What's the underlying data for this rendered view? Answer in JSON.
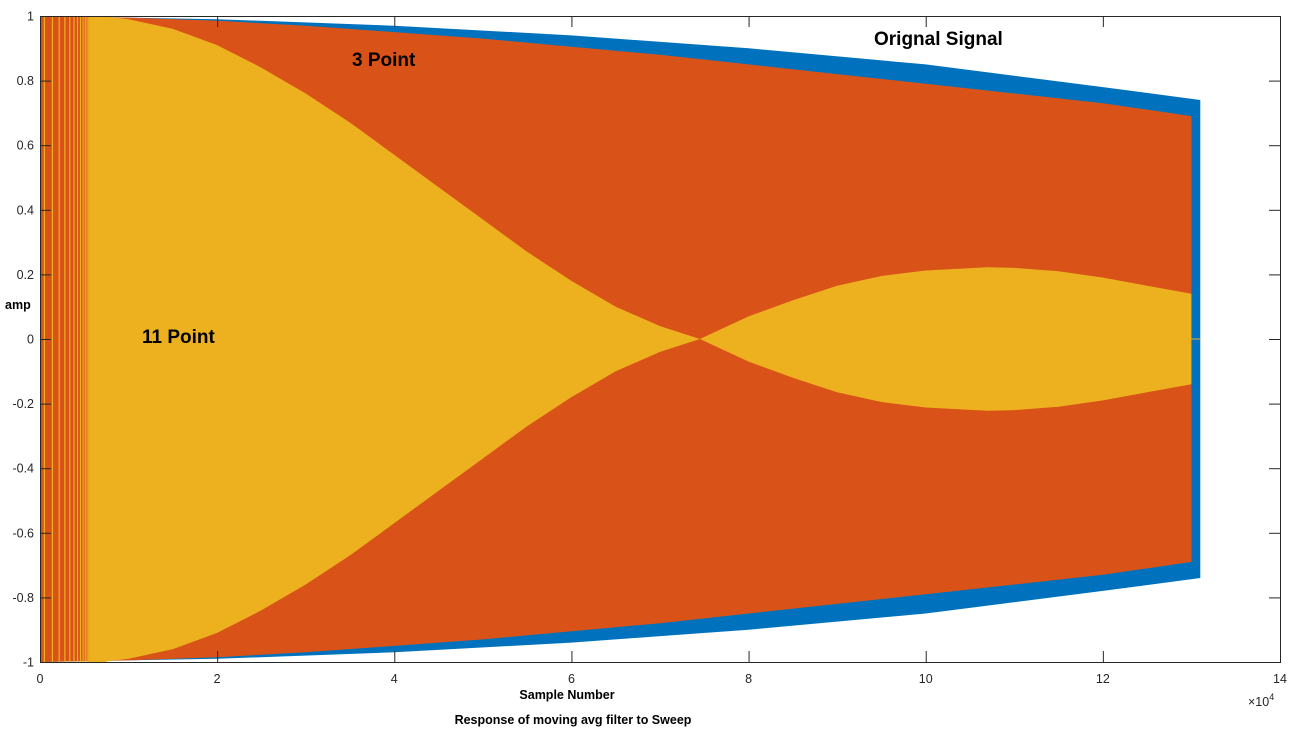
{
  "chart_data": {
    "type": "area",
    "title": "Response of moving avg filter to Sweep",
    "xlabel": "Sample Number",
    "ylabel": "amp",
    "x_exponent_label": "×10^4",
    "xlim": [
      0,
      14
    ],
    "ylim": [
      -1,
      1
    ],
    "x_ticks": [
      0,
      2,
      4,
      6,
      8,
      10,
      12,
      14
    ],
    "y_ticks": [
      -1,
      -0.8,
      -0.6,
      -0.4,
      -0.2,
      0,
      0.2,
      0.4,
      0.6,
      0.8,
      1
    ],
    "x_tick_labels": [
      "0",
      "2",
      "4",
      "6",
      "8",
      "10",
      "12",
      "14"
    ],
    "y_tick_labels": [
      "-1",
      "-0.8",
      "-0.6",
      "-0.4",
      "-0.2",
      "0",
      "0.2",
      "0.4",
      "0.6",
      "0.8",
      "1"
    ],
    "grid": false,
    "legend": "none (inline annotations)",
    "note": "Series are dense sinusoidal sweeps; values below are the amplitude envelopes (symmetric about 0). x in units of 10^4 samples.",
    "series": [
      {
        "name": "Orignal Signal",
        "color": "#0072BD",
        "x": [
          0,
          2,
          4,
          6,
          8,
          10,
          12,
          13.1
        ],
        "envelope": [
          1.0,
          0.99,
          0.97,
          0.94,
          0.9,
          0.85,
          0.78,
          0.74
        ]
      },
      {
        "name": "3 Point",
        "color": "#D95319",
        "x": [
          0,
          1,
          2,
          3,
          4,
          5,
          6,
          7,
          8,
          9,
          10,
          11,
          12,
          13
        ],
        "envelope": [
          1.0,
          0.995,
          0.985,
          0.97,
          0.95,
          0.93,
          0.905,
          0.88,
          0.85,
          0.82,
          0.79,
          0.76,
          0.73,
          0.69
        ]
      },
      {
        "name": "11 Point",
        "color": "#EDB120",
        "x": [
          0.7,
          1,
          1.5,
          2,
          2.5,
          3,
          3.5,
          4,
          4.5,
          5,
          5.5,
          6,
          6.5,
          7,
          7.45,
          8,
          8.5,
          9,
          9.5,
          10,
          10.7,
          11,
          11.5,
          12,
          12.5,
          13
        ],
        "envelope": [
          1.0,
          0.99,
          0.96,
          0.91,
          0.84,
          0.76,
          0.67,
          0.57,
          0.47,
          0.37,
          0.27,
          0.18,
          0.1,
          0.04,
          0.0,
          0.07,
          0.12,
          0.165,
          0.195,
          0.212,
          0.222,
          0.22,
          0.21,
          0.19,
          0.165,
          0.14
        ]
      }
    ],
    "annotations": [
      {
        "text": "Orignal Signal",
        "x": 10.4,
        "y": 0.93
      },
      {
        "text": "3 Point",
        "x": 3.6,
        "y": 0.86
      },
      {
        "text": "11 Point",
        "x": 1.15,
        "y": 0.01
      }
    ]
  }
}
